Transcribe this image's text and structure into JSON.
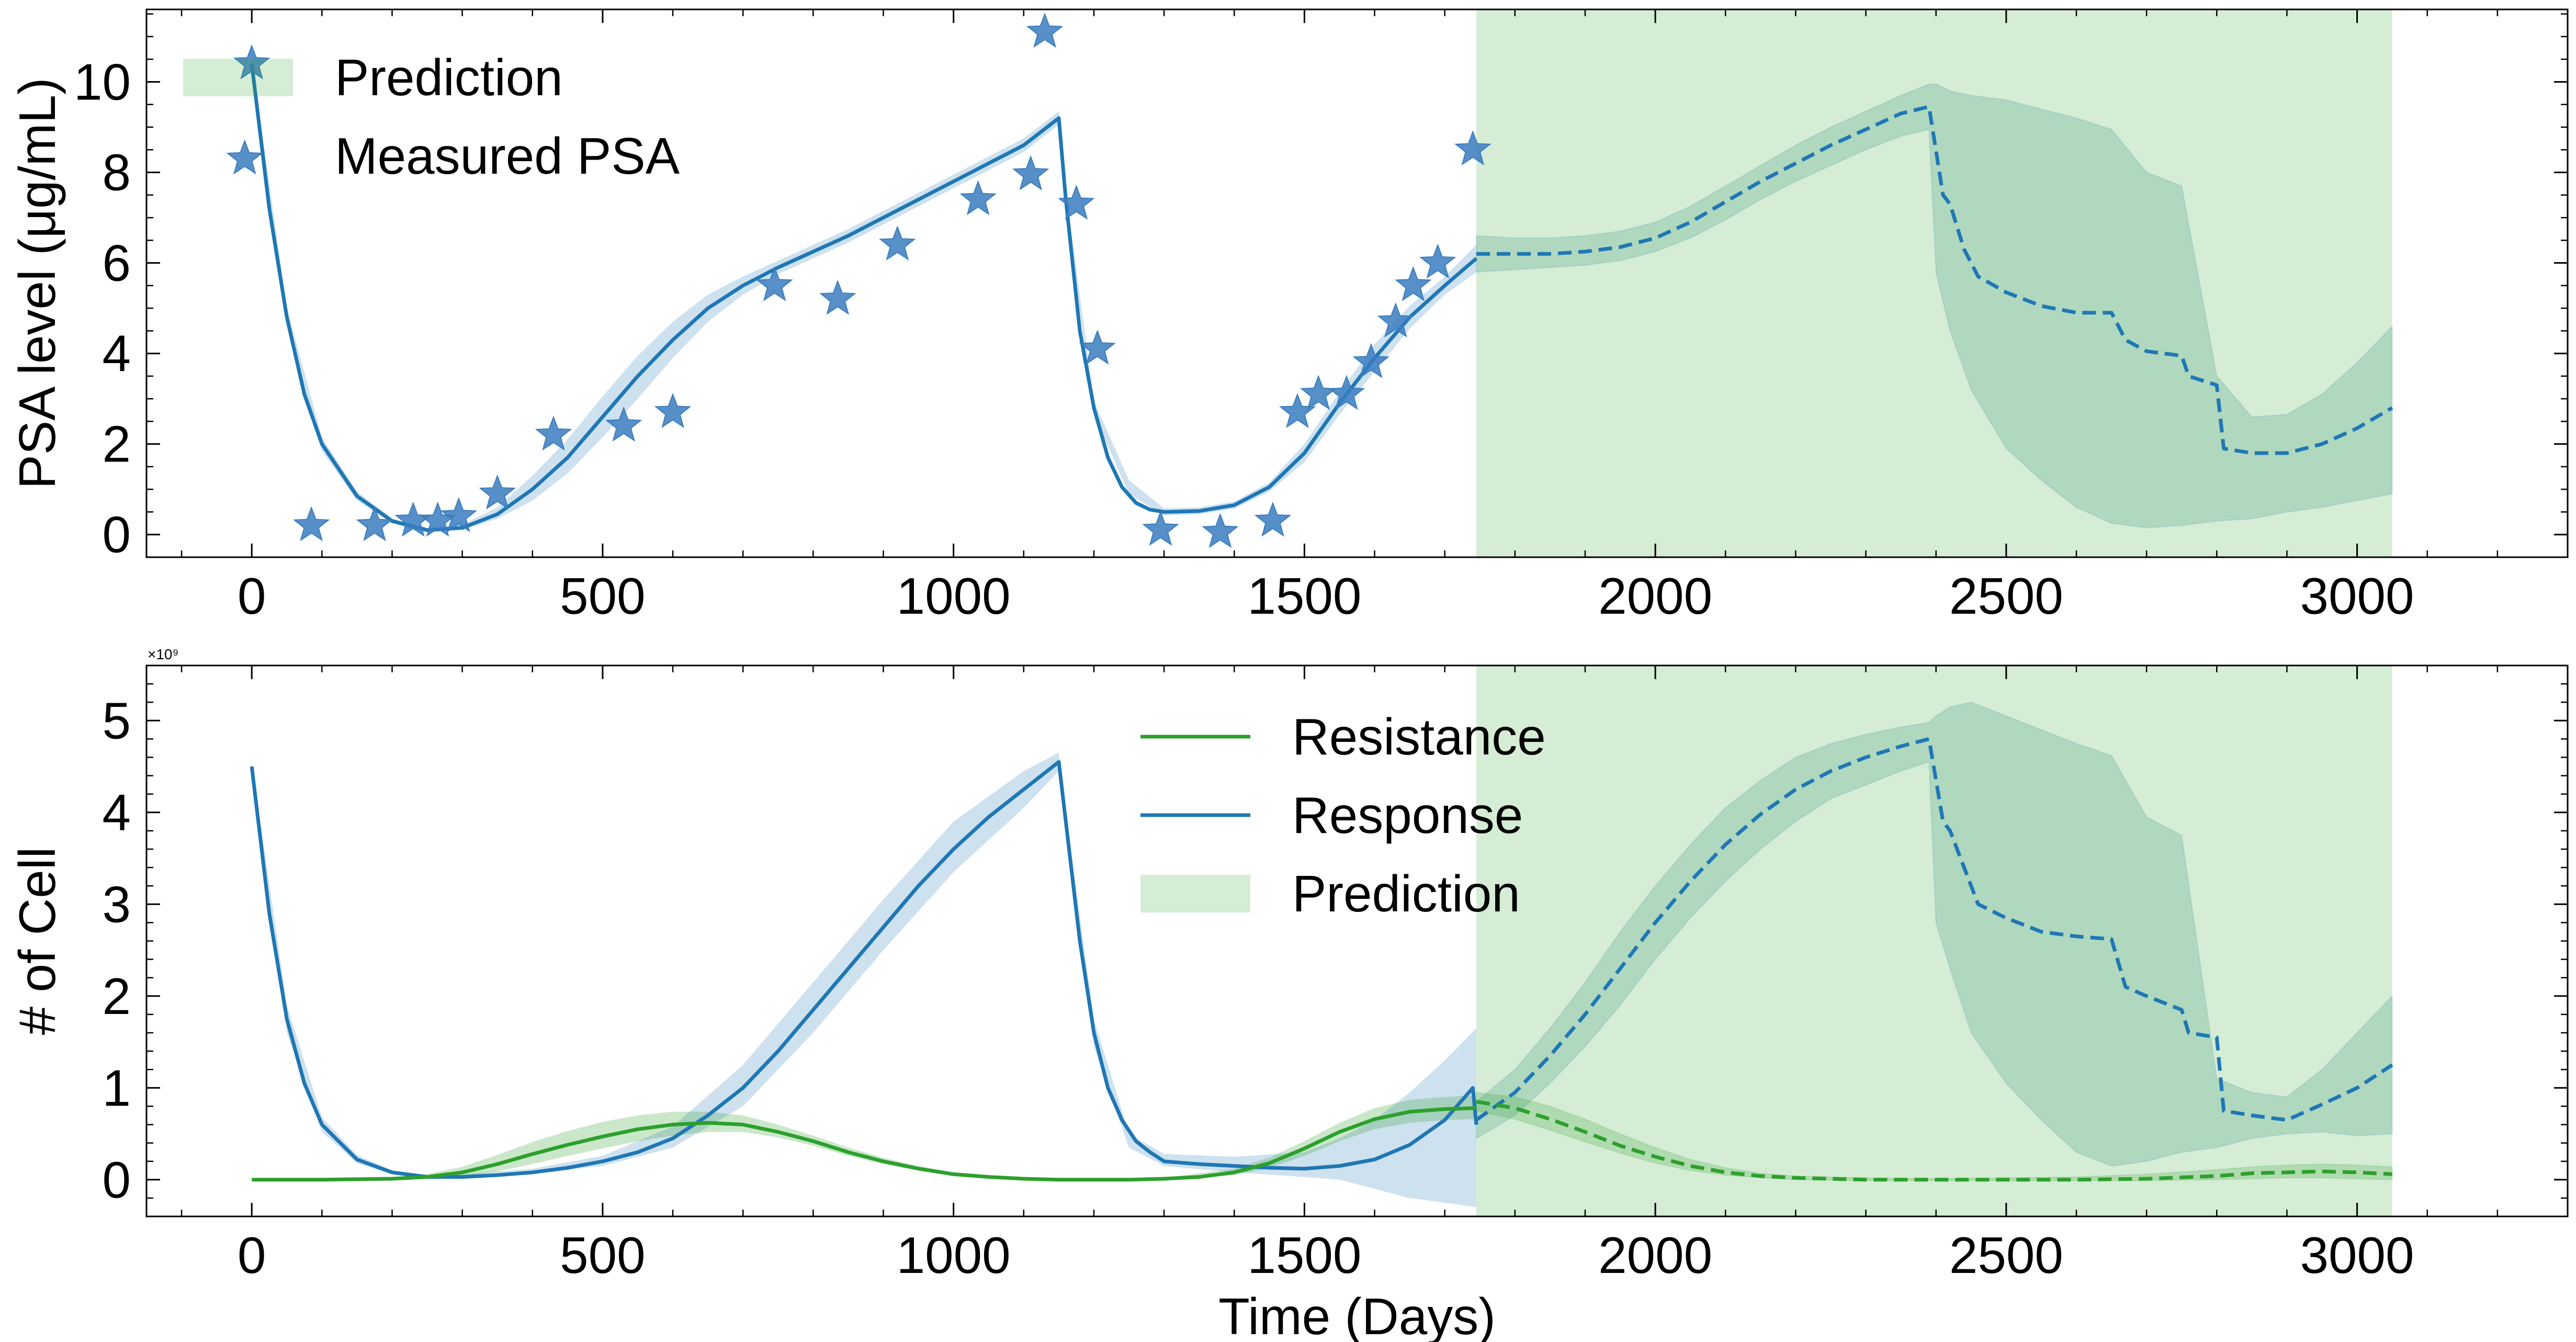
{
  "colors": {
    "prediction": "#2ca02c",
    "response": "#1f77b4",
    "resistance": "#2ca02c",
    "measured": "#3a7dbf"
  },
  "chart_data": [
    {
      "type": "line",
      "panel": "top",
      "ylabel": "PSA level (μg/mL)",
      "xlim": [
        -150,
        3300
      ],
      "ylim": [
        -0.5,
        11.6
      ],
      "xticks": [
        0,
        500,
        1000,
        1500,
        2000,
        2500,
        3000
      ],
      "yticks": [
        0,
        2,
        4,
        6,
        8,
        10
      ],
      "grid": false,
      "legend_placement": "top-left",
      "prediction_region": [
        1745,
        3050
      ],
      "legend": [
        {
          "key": "prediction",
          "label": "Prediction",
          "kind": "patch"
        },
        {
          "key": "measured",
          "label": "Measured PSA",
          "kind": "star"
        }
      ],
      "measured": {
        "x": [
          -10,
          0,
          85,
          175,
          230,
          265,
          295,
          350,
          430,
          530,
          600,
          745,
          835,
          920,
          1035,
          1110,
          1130,
          1175,
          1205,
          1295,
          1380,
          1455,
          1490,
          1520,
          1560,
          1595,
          1630,
          1655,
          1690,
          1740
        ],
        "y": [
          8.3,
          10.4,
          0.2,
          0.2,
          0.3,
          0.3,
          0.4,
          0.9,
          2.2,
          2.4,
          2.7,
          5.5,
          5.2,
          6.4,
          7.4,
          7.95,
          11.1,
          7.3,
          4.1,
          0.1,
          0.05,
          0.3,
          2.7,
          3.1,
          3.1,
          3.8,
          4.7,
          5.5,
          6.0,
          8.5
        ]
      },
      "fit": {
        "x": [
          0,
          25,
          50,
          75,
          100,
          150,
          200,
          250,
          300,
          350,
          400,
          450,
          500,
          550,
          600,
          650,
          700,
          750,
          800,
          850,
          900,
          950,
          1000,
          1050,
          1100,
          1150,
          1160,
          1180,
          1200,
          1220,
          1240,
          1260,
          1280,
          1300,
          1350,
          1400,
          1450,
          1500,
          1550,
          1600,
          1650,
          1700,
          1745
        ],
        "y": [
          10.4,
          7.2,
          4.8,
          3.1,
          2.0,
          0.85,
          0.3,
          0.1,
          0.15,
          0.45,
          1.0,
          1.7,
          2.6,
          3.5,
          4.3,
          5.0,
          5.5,
          5.9,
          6.25,
          6.6,
          7.0,
          7.4,
          7.8,
          8.2,
          8.6,
          9.2,
          7.4,
          4.5,
          2.8,
          1.7,
          1.05,
          0.7,
          0.55,
          0.5,
          0.52,
          0.65,
          1.05,
          1.8,
          2.9,
          3.9,
          4.8,
          5.5,
          6.1
        ]
      },
      "fit_band": {
        "x": [
          0,
          50,
          100,
          150,
          200,
          250,
          300,
          350,
          400,
          450,
          500,
          550,
          600,
          650,
          700,
          750,
          800,
          850,
          900,
          950,
          1000,
          1050,
          1100,
          1150,
          1160,
          1200,
          1250,
          1300,
          1350,
          1400,
          1450,
          1500,
          1550,
          1600,
          1650,
          1700,
          1745
        ],
        "lower": [
          10.3,
          4.6,
          1.85,
          0.75,
          0.25,
          0.05,
          0.1,
          0.35,
          0.75,
          1.35,
          2.15,
          3.0,
          3.9,
          4.7,
          5.3,
          5.75,
          6.1,
          6.45,
          6.85,
          7.25,
          7.65,
          8.05,
          8.45,
          9.05,
          7.2,
          2.65,
          0.9,
          0.42,
          0.45,
          0.57,
          0.95,
          1.6,
          2.65,
          3.6,
          4.55,
          5.3,
          5.8
        ],
        "upper": [
          10.5,
          5.0,
          2.15,
          0.95,
          0.35,
          0.15,
          0.22,
          0.6,
          1.3,
          2.1,
          3.05,
          3.95,
          4.7,
          5.3,
          5.7,
          6.05,
          6.4,
          6.75,
          7.15,
          7.55,
          7.95,
          8.35,
          8.75,
          9.35,
          7.6,
          2.95,
          1.2,
          0.58,
          0.6,
          0.73,
          1.15,
          2.0,
          3.15,
          4.2,
          5.05,
          5.7,
          6.4
        ]
      },
      "prediction": {
        "x": [
          1745,
          1800,
          1850,
          1900,
          1950,
          2000,
          2050,
          2100,
          2150,
          2200,
          2250,
          2300,
          2350,
          2390,
          2410,
          2420,
          2440,
          2460,
          2500,
          2550,
          2600,
          2650,
          2670,
          2700,
          2750,
          2760,
          2800,
          2810,
          2850,
          2900,
          2950,
          3000,
          3050
        ],
        "y": [
          6.2,
          6.2,
          6.2,
          6.25,
          6.35,
          6.55,
          6.9,
          7.35,
          7.8,
          8.2,
          8.6,
          8.95,
          9.3,
          9.45,
          7.5,
          7.3,
          6.3,
          5.7,
          5.35,
          5.05,
          4.9,
          4.9,
          4.3,
          4.05,
          3.95,
          3.5,
          3.3,
          1.9,
          1.8,
          1.8,
          2.0,
          2.35,
          2.8
        ]
      },
      "prediction_band": {
        "x": [
          1745,
          1800,
          1850,
          1900,
          1950,
          2000,
          2050,
          2100,
          2150,
          2200,
          2250,
          2300,
          2350,
          2390,
          2400,
          2420,
          2450,
          2500,
          2550,
          2600,
          2650,
          2700,
          2750,
          2800,
          2850,
          2900,
          2950,
          3000,
          3050
        ],
        "lower": [
          5.8,
          5.85,
          5.9,
          5.95,
          6.05,
          6.25,
          6.55,
          6.95,
          7.4,
          7.8,
          8.15,
          8.5,
          8.8,
          8.95,
          5.8,
          4.5,
          3.2,
          1.9,
          1.2,
          0.6,
          0.25,
          0.15,
          0.2,
          0.3,
          0.35,
          0.5,
          0.6,
          0.75,
          0.9
        ],
        "upper": [
          6.6,
          6.55,
          6.55,
          6.6,
          6.7,
          6.9,
          7.25,
          7.7,
          8.15,
          8.6,
          9.0,
          9.35,
          9.7,
          9.95,
          9.95,
          9.8,
          9.7,
          9.6,
          9.4,
          9.2,
          8.95,
          8.0,
          7.7,
          3.5,
          2.6,
          2.65,
          3.1,
          3.8,
          4.6
        ]
      }
    },
    {
      "type": "line",
      "panel": "bottom",
      "xlabel": "Time (Days)",
      "ylabel": "# of Cell",
      "scale_label": "×10⁹",
      "xlim": [
        -150,
        3300
      ],
      "ylim": [
        -0.4,
        5.6
      ],
      "xticks": [
        0,
        500,
        1000,
        1500,
        2000,
        2500,
        3000
      ],
      "yticks": [
        0,
        1,
        2,
        3,
        4,
        5
      ],
      "grid": false,
      "legend_placement": "top-center",
      "prediction_region": [
        1745,
        3050
      ],
      "legend": [
        {
          "key": "resistance",
          "label": "Resistance",
          "kind": "line"
        },
        {
          "key": "response",
          "label": "Response",
          "kind": "line"
        },
        {
          "key": "prediction",
          "label": "Prediction",
          "kind": "patch"
        }
      ],
      "series": [
        {
          "key": "response",
          "fit_x": [
            0,
            25,
            50,
            75,
            100,
            150,
            200,
            250,
            300,
            350,
            400,
            450,
            500,
            550,
            600,
            650,
            700,
            750,
            800,
            850,
            900,
            950,
            1000,
            1050,
            1100,
            1150,
            1160,
            1180,
            1200,
            1220,
            1240,
            1260,
            1280,
            1300,
            1350,
            1400,
            1450,
            1500,
            1550,
            1600,
            1650,
            1700,
            1740,
            1745
          ],
          "fit_y": [
            4.5,
            2.9,
            1.75,
            1.05,
            0.6,
            0.22,
            0.08,
            0.03,
            0.03,
            0.05,
            0.08,
            0.13,
            0.2,
            0.3,
            0.45,
            0.7,
            1.0,
            1.4,
            1.85,
            2.3,
            2.75,
            3.2,
            3.6,
            3.95,
            4.25,
            4.55,
            3.9,
            2.6,
            1.6,
            1.0,
            0.65,
            0.42,
            0.3,
            0.2,
            0.17,
            0.15,
            0.13,
            0.12,
            0.15,
            0.22,
            0.38,
            0.65,
            1.0,
            0.6
          ],
          "band_x": [
            0,
            50,
            100,
            150,
            200,
            250,
            300,
            400,
            500,
            600,
            700,
            800,
            900,
            1000,
            1100,
            1150,
            1160,
            1200,
            1250,
            1300,
            1400,
            1500,
            1550,
            1600,
            1650,
            1700,
            1745
          ],
          "band_lower": [
            4.45,
            1.6,
            0.52,
            0.18,
            0.06,
            0.02,
            0.02,
            0.06,
            0.15,
            0.35,
            0.8,
            1.6,
            2.5,
            3.35,
            4.05,
            4.45,
            3.8,
            1.45,
            0.35,
            0.15,
            0.08,
            0.03,
            0.0,
            -0.1,
            -0.2,
            -0.25,
            -0.3
          ],
          "band_upper": [
            4.55,
            1.9,
            0.68,
            0.27,
            0.1,
            0.05,
            0.06,
            0.12,
            0.26,
            0.58,
            1.25,
            2.15,
            3.05,
            3.9,
            4.45,
            4.65,
            4.0,
            1.75,
            0.5,
            0.28,
            0.25,
            0.3,
            0.45,
            0.65,
            0.95,
            1.3,
            1.65
          ],
          "pred_x": [
            1745,
            1800,
            1850,
            1900,
            1950,
            2000,
            2050,
            2100,
            2150,
            2200,
            2250,
            2300,
            2350,
            2390,
            2410,
            2420,
            2440,
            2460,
            2500,
            2550,
            2600,
            2650,
            2670,
            2700,
            2750,
            2760,
            2800,
            2810,
            2850,
            2900,
            2950,
            3000,
            3050
          ],
          "pred_y": [
            0.65,
            0.95,
            1.35,
            1.8,
            2.3,
            2.8,
            3.25,
            3.65,
            3.98,
            4.25,
            4.45,
            4.6,
            4.72,
            4.8,
            3.9,
            3.8,
            3.4,
            3.0,
            2.85,
            2.7,
            2.65,
            2.62,
            2.1,
            2.0,
            1.85,
            1.6,
            1.55,
            0.75,
            0.7,
            0.65,
            0.82,
            1.0,
            1.25
          ],
          "pred_band_x": [
            1745,
            1800,
            1850,
            1900,
            1950,
            2000,
            2050,
            2100,
            2150,
            2200,
            2250,
            2300,
            2350,
            2390,
            2400,
            2420,
            2450,
            2500,
            2550,
            2600,
            2650,
            2700,
            2750,
            2800,
            2850,
            2900,
            2950,
            3000,
            3050
          ],
          "pred_band_lower": [
            0.45,
            0.7,
            1.05,
            1.45,
            1.9,
            2.4,
            2.85,
            3.25,
            3.6,
            3.9,
            4.15,
            4.3,
            4.45,
            4.55,
            2.8,
            2.3,
            1.6,
            1.05,
            0.65,
            0.3,
            0.15,
            0.2,
            0.3,
            0.35,
            0.45,
            0.5,
            0.52,
            0.48,
            0.5
          ],
          "pred_band_upper": [
            0.85,
            1.2,
            1.65,
            2.15,
            2.7,
            3.2,
            3.65,
            4.05,
            4.35,
            4.6,
            4.75,
            4.85,
            4.93,
            4.98,
            5.05,
            5.15,
            5.2,
            5.05,
            4.9,
            4.75,
            4.62,
            3.95,
            3.75,
            1.1,
            0.95,
            0.9,
            1.2,
            1.6,
            2.0
          ]
        },
        {
          "key": "resistance",
          "fit_x": [
            0,
            100,
            200,
            250,
            300,
            350,
            400,
            450,
            500,
            550,
            600,
            650,
            700,
            750,
            800,
            850,
            900,
            950,
            1000,
            1050,
            1100,
            1150,
            1200,
            1250,
            1300,
            1350,
            1400,
            1450,
            1500,
            1550,
            1600,
            1650,
            1700,
            1745
          ],
          "fit_y": [
            0.0,
            0.0,
            0.01,
            0.03,
            0.08,
            0.17,
            0.28,
            0.38,
            0.47,
            0.55,
            0.6,
            0.62,
            0.6,
            0.52,
            0.42,
            0.3,
            0.2,
            0.12,
            0.06,
            0.03,
            0.01,
            0.0,
            0.0,
            0.0,
            0.01,
            0.03,
            0.08,
            0.18,
            0.34,
            0.52,
            0.66,
            0.74,
            0.77,
            0.78
          ],
          "band_x": [
            0,
            200,
            250,
            300,
            350,
            400,
            450,
            500,
            550,
            600,
            650,
            700,
            750,
            800,
            850,
            900,
            950,
            1000,
            1100,
            1200,
            1300,
            1400,
            1450,
            1500,
            1550,
            1600,
            1650,
            1700,
            1745
          ],
          "band_lower": [
            -0.01,
            0.0,
            0.01,
            0.03,
            0.09,
            0.17,
            0.26,
            0.34,
            0.42,
            0.48,
            0.52,
            0.52,
            0.46,
            0.37,
            0.26,
            0.17,
            0.1,
            0.05,
            0.0,
            -0.01,
            0.0,
            0.05,
            0.13,
            0.26,
            0.42,
            0.55,
            0.62,
            0.65,
            0.66
          ],
          "band_upper": [
            0.01,
            0.03,
            0.06,
            0.14,
            0.27,
            0.41,
            0.53,
            0.63,
            0.7,
            0.74,
            0.74,
            0.7,
            0.6,
            0.48,
            0.35,
            0.24,
            0.15,
            0.08,
            0.02,
            0.01,
            0.02,
            0.12,
            0.24,
            0.42,
            0.62,
            0.78,
            0.87,
            0.9,
            0.92
          ],
          "pred_x": [
            1745,
            1800,
            1850,
            1900,
            1950,
            2000,
            2050,
            2100,
            2150,
            2200,
            2300,
            2400,
            2500,
            2600,
            2700,
            2800,
            2850,
            2900,
            2950,
            3000,
            3050
          ],
          "pred_y": [
            0.85,
            0.78,
            0.66,
            0.52,
            0.37,
            0.25,
            0.15,
            0.08,
            0.04,
            0.02,
            0.0,
            0.0,
            0.0,
            0.0,
            0.01,
            0.04,
            0.07,
            0.08,
            0.09,
            0.08,
            0.06
          ],
          "pred_band_x": [
            1745,
            1800,
            1850,
            1900,
            1950,
            2000,
            2050,
            2100,
            2150,
            2200,
            2300,
            2400,
            2500,
            2600,
            2700,
            2800,
            2850,
            2900,
            2950,
            3000,
            3050
          ],
          "pred_band_lower": [
            0.75,
            0.66,
            0.54,
            0.41,
            0.29,
            0.18,
            0.1,
            0.05,
            0.02,
            0.0,
            -0.01,
            -0.01,
            -0.01,
            -0.01,
            -0.01,
            0.0,
            0.01,
            0.02,
            0.02,
            0.01,
            0.0
          ],
          "pred_band_upper": [
            0.95,
            0.9,
            0.8,
            0.66,
            0.5,
            0.35,
            0.22,
            0.13,
            0.07,
            0.04,
            0.02,
            0.01,
            0.02,
            0.03,
            0.06,
            0.11,
            0.14,
            0.16,
            0.17,
            0.16,
            0.14
          ]
        }
      ]
    }
  ]
}
